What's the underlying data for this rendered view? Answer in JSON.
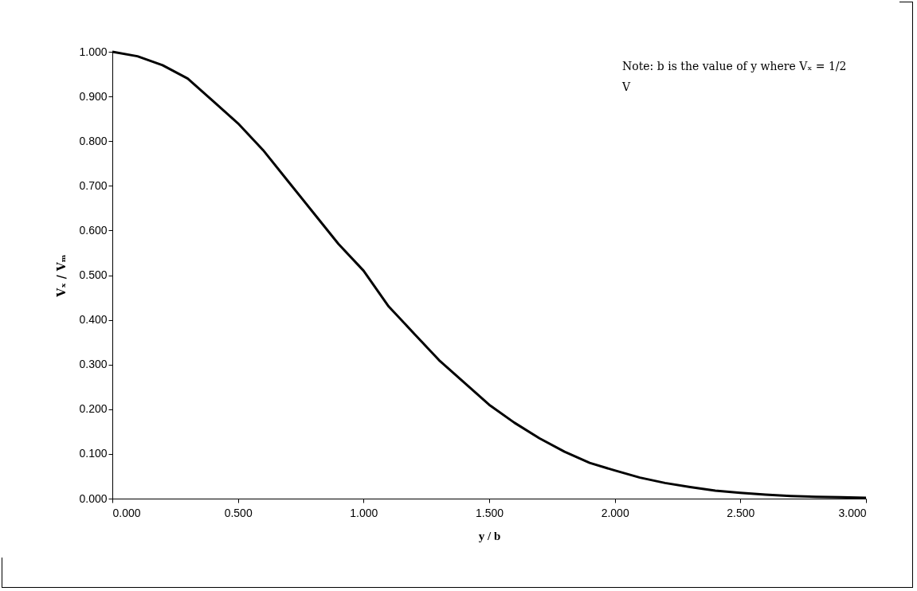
{
  "chart_data": {
    "type": "line",
    "xlabel": "y / b",
    "ylabel": "Vₓ / Vₘ",
    "annotations": [
      "Note: b is the value of y where Vₓ = 1/2 V"
    ],
    "x": [
      0,
      0.1,
      0.2,
      0.3,
      0.4,
      0.5,
      0.6,
      0.7,
      0.8,
      0.9,
      1.0,
      1.1,
      1.2,
      1.3,
      1.4,
      1.5,
      1.6,
      1.7,
      1.8,
      1.9,
      2.0,
      2.1,
      2.2,
      2.3,
      2.4,
      2.5,
      2.6,
      2.7,
      2.8,
      2.9,
      3.0
    ],
    "series": [
      {
        "color": "#000000",
        "values": [
          1.0,
          0.99,
          0.97,
          0.94,
          0.89,
          0.84,
          0.78,
          0.71,
          0.64,
          0.57,
          0.51,
          0.43,
          0.37,
          0.31,
          0.26,
          0.21,
          0.17,
          0.135,
          0.105,
          0.08,
          0.063,
          0.047,
          0.035,
          0.026,
          0.018,
          0.013,
          0.009,
          0.006,
          0.004,
          0.003,
          0.002
        ]
      }
    ],
    "xlim": [
      0,
      3
    ],
    "xticks": [
      {
        "value": 0,
        "label": "0.000"
      },
      {
        "value": 0.5,
        "label": "0.500"
      },
      {
        "value": 1,
        "label": "1.000"
      },
      {
        "value": 1.5,
        "label": "1.500"
      },
      {
        "value": 2,
        "label": "2.000"
      },
      {
        "value": 2.5,
        "label": "2.500"
      },
      {
        "value": 3,
        "label": "3.000"
      }
    ],
    "ylim": [
      0,
      1
    ],
    "yticks": [
      {
        "value": 0,
        "label": "0.000"
      },
      {
        "value": 0.1,
        "label": "0.100"
      },
      {
        "value": 0.2,
        "label": "0.200"
      },
      {
        "value": 0.3,
        "label": "0.300"
      },
      {
        "value": 0.4,
        "label": "0.400"
      },
      {
        "value": 0.5,
        "label": "0.500"
      },
      {
        "value": 0.6,
        "label": "0.600"
      },
      {
        "value": 0.7,
        "label": "0.700"
      },
      {
        "value": 0.8,
        "label": "0.800"
      },
      {
        "value": 0.9,
        "label": "0.900"
      },
      {
        "value": 1,
        "label": "1.000"
      }
    ],
    "grid": false,
    "marker": "none",
    "line_style": "solid"
  }
}
